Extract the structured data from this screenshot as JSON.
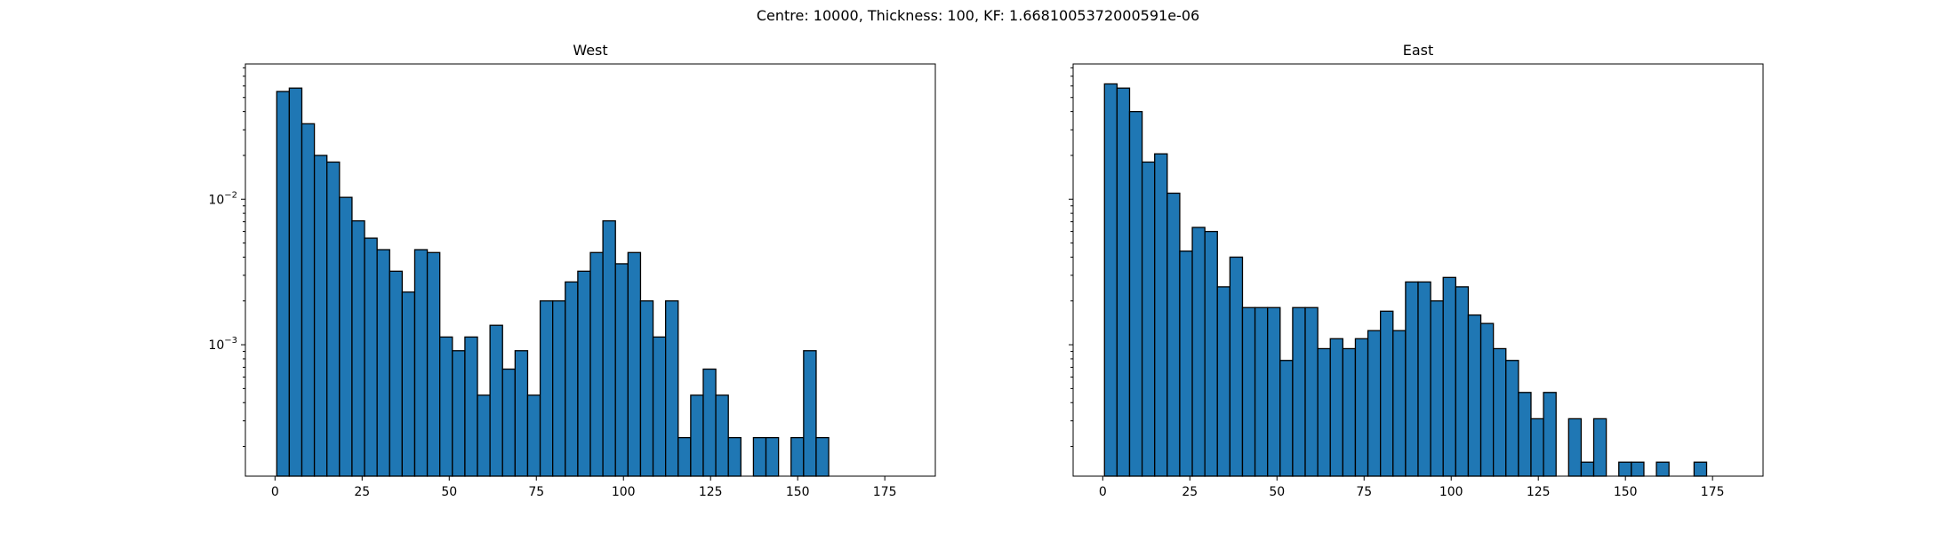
{
  "figure": {
    "suptitle": "Centre: 10000, Thickness: 100, KF: 1.6681005372000591e-06"
  },
  "chart_data": [
    {
      "type": "bar",
      "title": "West",
      "xlabel": "",
      "ylabel": "",
      "yscale": "log",
      "xlim": [
        -8.5,
        189.5
      ],
      "ylim": [
        0.000125,
        0.085
      ],
      "xticks": [
        0,
        25,
        50,
        75,
        100,
        125,
        150,
        175
      ],
      "yticks": [
        {
          "value": 0.01,
          "label": "10^-2"
        },
        {
          "value": 0.001,
          "label": "10^-3"
        }
      ],
      "bin_width": 3.6,
      "bin_start": 0.5,
      "edgecolor": "#000000",
      "facecolor": "#1f77b4",
      "values": [
        0.055,
        0.058,
        0.033,
        0.02,
        0.018,
        0.0103,
        0.0071,
        0.0054,
        0.0045,
        0.0032,
        0.0023,
        0.0045,
        0.0043,
        0.00113,
        0.00091,
        0.00113,
        0.00045,
        0.00136,
        0.00068,
        0.00091,
        0.00045,
        0.002,
        0.002,
        0.0027,
        0.0032,
        0.0043,
        0.0071,
        0.0036,
        0.0043,
        0.002,
        0.00113,
        0.002,
        0.00023,
        0.00045,
        0.00068,
        0.00045,
        0.00023,
        0,
        0.00023,
        0.00023,
        0,
        0.00023,
        0.00091,
        0.00023
      ]
    },
    {
      "type": "bar",
      "title": "East",
      "xlabel": "",
      "ylabel": "",
      "yscale": "log",
      "xlim": [
        -8.5,
        189.5
      ],
      "ylim": [
        0.000125,
        0.085
      ],
      "xticks": [
        0,
        25,
        50,
        75,
        100,
        125,
        150,
        175
      ],
      "bin_width": 3.6,
      "bin_start": 0.5,
      "edgecolor": "#000000",
      "facecolor": "#1f77b4",
      "values": [
        0.062,
        0.058,
        0.04,
        0.018,
        0.0205,
        0.011,
        0.0044,
        0.0064,
        0.006,
        0.0025,
        0.004,
        0.0018,
        0.0018,
        0.0018,
        0.00078,
        0.0018,
        0.0018,
        0.00094,
        0.0011,
        0.00094,
        0.0011,
        0.00125,
        0.0017,
        0.00125,
        0.0027,
        0.0027,
        0.002,
        0.0029,
        0.0025,
        0.0016,
        0.0014,
        0.00094,
        0.00078,
        0.00047,
        0.00031,
        0.00047,
        0,
        0.00031,
        0.000156,
        0.00031,
        0,
        0.000156,
        0.000156,
        0,
        0.000156,
        0,
        0,
        0.000156
      ]
    }
  ]
}
